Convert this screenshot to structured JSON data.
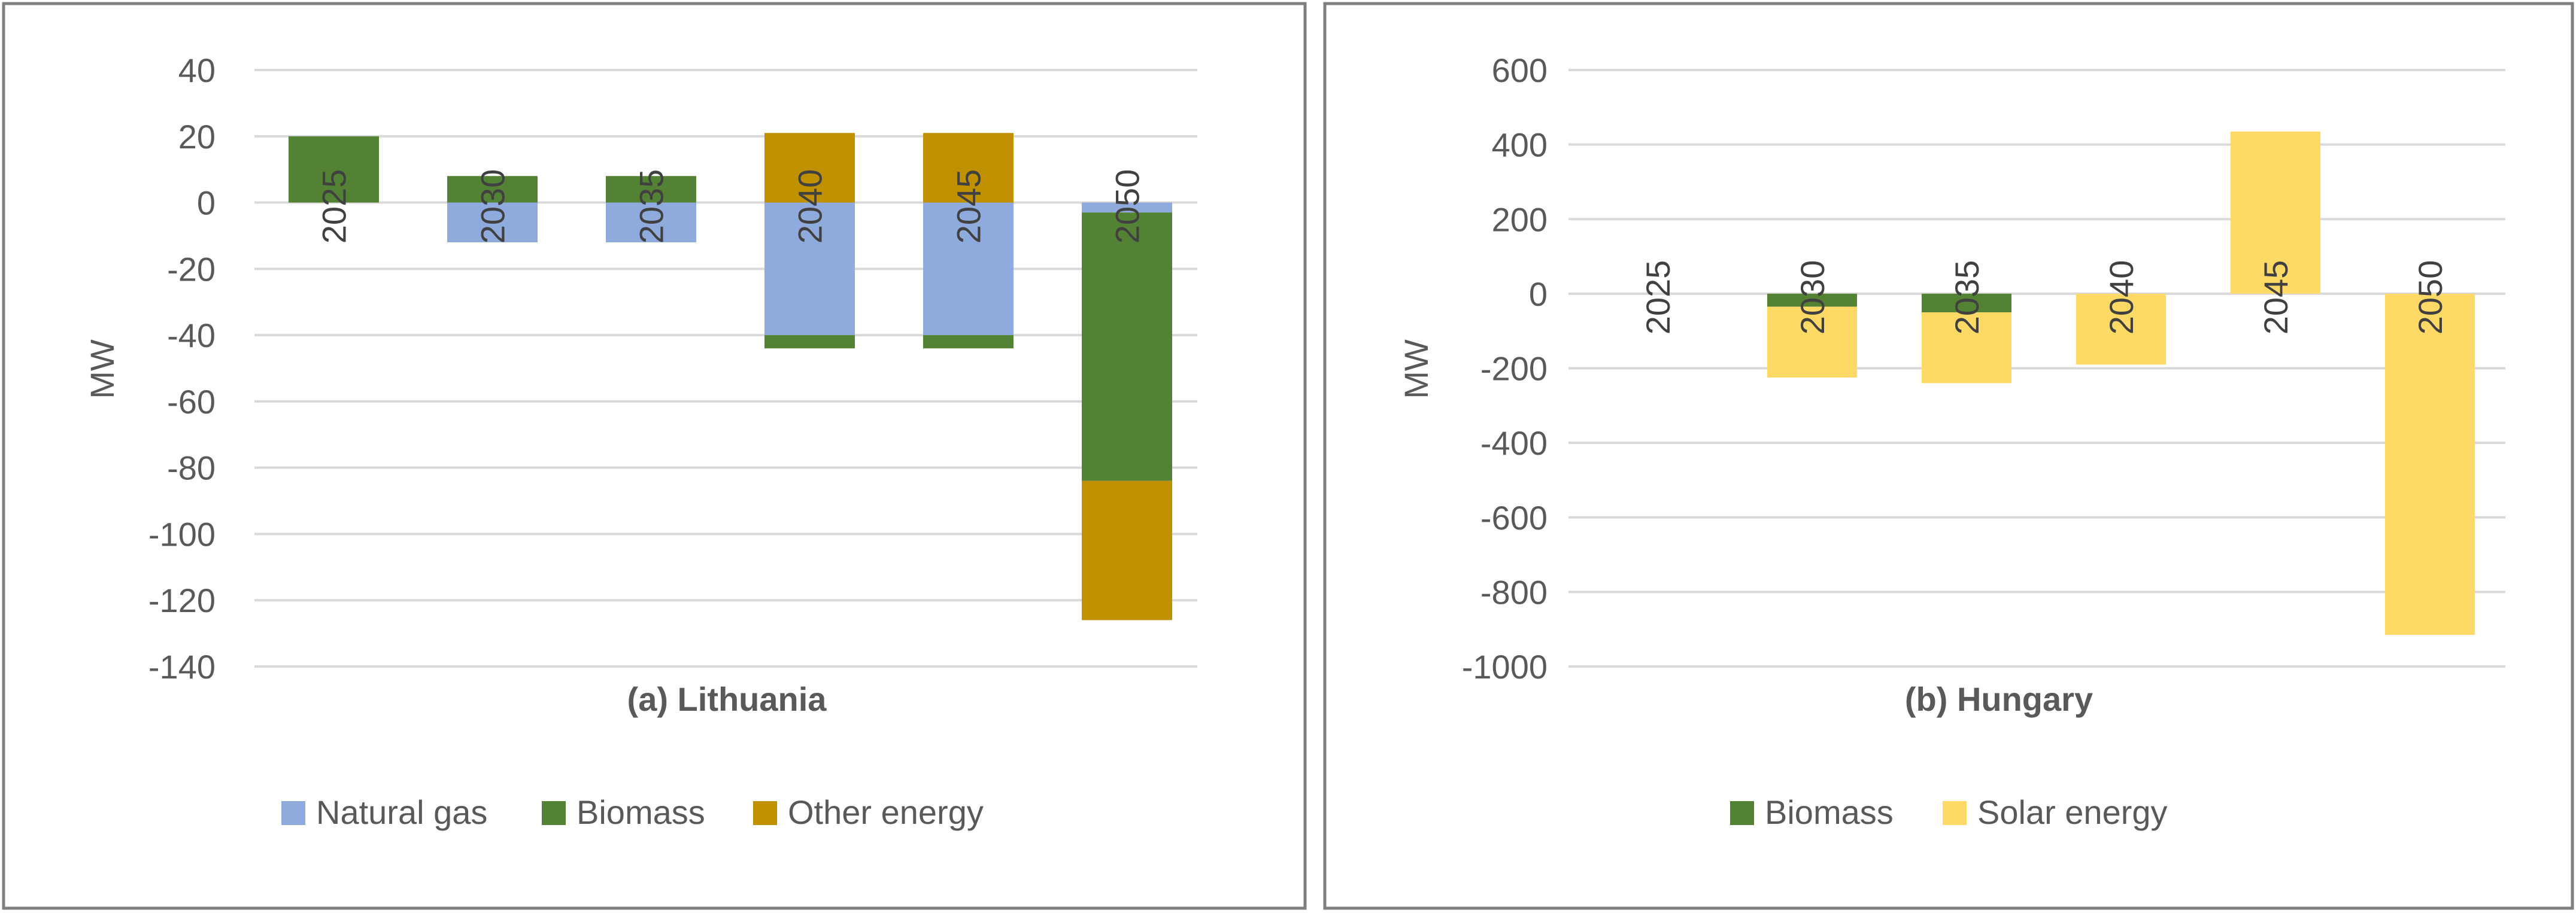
{
  "chart_data": [
    {
      "type": "bar",
      "stacked": true,
      "title": "(a) Lithuania",
      "xlabel": "",
      "ylabel": "MW",
      "ylim": [
        -140,
        40
      ],
      "yticks": [
        40,
        20,
        0,
        -20,
        -40,
        -60,
        -80,
        -100,
        -120,
        -140
      ],
      "categories": [
        "2025",
        "2030",
        "2035",
        "2040",
        "2045",
        "2050"
      ],
      "grid": true,
      "legend_position": "bottom",
      "series": [
        {
          "name": "Natural gas",
          "color": "#8faadc",
          "values": [
            0,
            -12,
            -12,
            -40,
            -40,
            -3
          ]
        },
        {
          "name": "Biomass",
          "color": "#548235",
          "values": [
            20,
            8,
            8,
            -4,
            -4,
            -81
          ]
        },
        {
          "name": "Other energy",
          "color": "#bf9000",
          "values": [
            0,
            0,
            0,
            21,
            21,
            -42
          ]
        }
      ]
    },
    {
      "type": "bar",
      "stacked": true,
      "title": "(b) Hungary",
      "xlabel": "",
      "ylabel": "MW",
      "ylim": [
        -1000,
        600
      ],
      "yticks": [
        600,
        400,
        200,
        0,
        -200,
        -400,
        -600,
        -800,
        -1000
      ],
      "categories": [
        "2025",
        "2030",
        "2035",
        "2040",
        "2045",
        "2050"
      ],
      "grid": true,
      "legend_position": "bottom",
      "series": [
        {
          "name": "Biomass",
          "color": "#548235",
          "values": [
            0,
            -35,
            -50,
            0,
            0,
            0
          ]
        },
        {
          "name": "Solar energy",
          "color": "#ffd966",
          "values": [
            0,
            -190,
            -190,
            -190,
            435,
            -915
          ]
        }
      ]
    }
  ]
}
